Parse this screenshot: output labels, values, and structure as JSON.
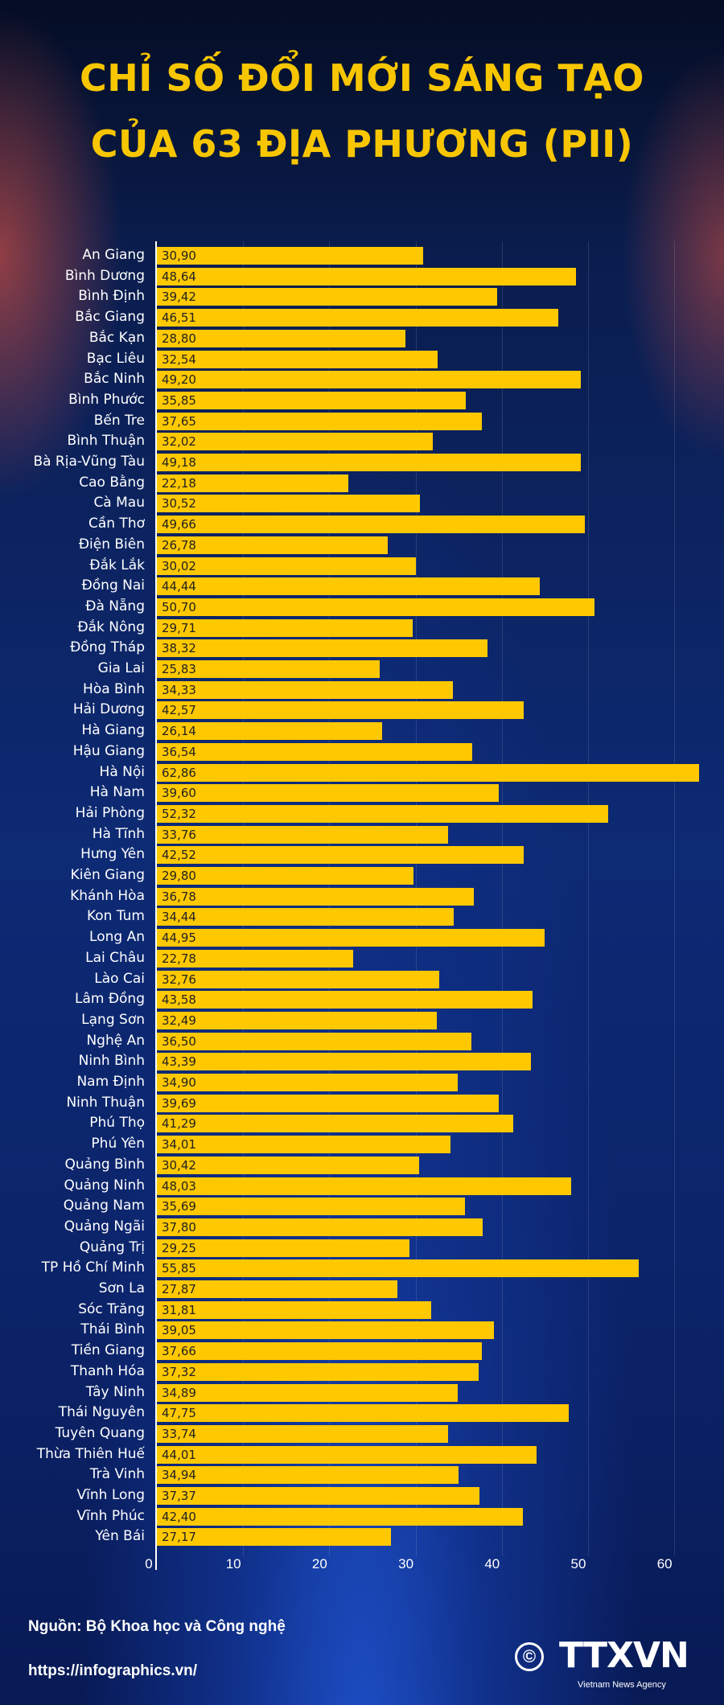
{
  "chart_data": {
    "type": "bar",
    "orientation": "horizontal",
    "title": "CHỈ SỐ ĐỔI MỚI SÁNG TẠO",
    "subtitle": "CỦA 63 ĐỊA PHƯƠNG (PII)",
    "xlabel": "",
    "ylabel": "",
    "xlim": [
      0,
      65
    ],
    "xticks": [
      0,
      10,
      20,
      30,
      40,
      50,
      60
    ],
    "grid": true,
    "bar_color": "#ffc800",
    "categories": [
      "An Giang",
      "Bình Dương",
      "Bình Định",
      "Bắc Giang",
      "Bắc Kạn",
      "Bạc Liêu",
      "Bắc Ninh",
      "Bình Phước",
      "Bến Tre",
      "Bình Thuận",
      "Bà Rịa-Vũng Tàu",
      "Cao Bằng",
      "Cà Mau",
      "Cần Thơ",
      "Điện Biên",
      "Đắk Lắk",
      "Đồng Nai",
      "Đà Nẵng",
      "Đắk Nông",
      "Đồng Tháp",
      "Gia Lai",
      "Hòa Bình",
      "Hải Dương",
      "Hà Giang",
      "Hậu Giang",
      "Hà Nội",
      "Hà Nam",
      "Hải Phòng",
      "Hà Tĩnh",
      "Hưng Yên",
      "Kiên Giang",
      "Khánh Hòa",
      "Kon Tum",
      "Long An",
      "Lai Châu",
      "Lào Cai",
      "Lâm Đồng",
      "Lạng Sơn",
      "Nghệ An",
      "Ninh Bình",
      "Nam Định",
      "Ninh Thuận",
      "Phú Thọ",
      "Phú Yên",
      "Quảng Bình",
      "Quảng Ninh",
      "Quảng Nam",
      "Quảng Ngãi",
      "Quảng Trị",
      "TP Hồ Chí Minh",
      "Sơn La",
      "Sóc Trăng",
      "Thái Bình",
      "Tiền Giang",
      "Thanh Hóa",
      "Tây Ninh",
      "Thái Nguyên",
      "Tuyên Quang",
      "Thừa Thiên Huế",
      "Trà Vinh",
      "Vĩnh Long",
      "Vĩnh Phúc",
      "Yên Bái"
    ],
    "values": [
      30.9,
      48.64,
      39.42,
      46.51,
      28.8,
      32.54,
      49.2,
      35.85,
      37.65,
      32.02,
      49.18,
      22.18,
      30.52,
      49.66,
      26.78,
      30.02,
      44.44,
      50.7,
      29.71,
      38.32,
      25.83,
      34.33,
      42.57,
      26.14,
      36.54,
      62.86,
      39.6,
      52.32,
      33.76,
      42.52,
      29.8,
      36.78,
      34.44,
      44.95,
      22.78,
      32.76,
      43.58,
      32.49,
      36.5,
      43.39,
      34.9,
      39.69,
      41.29,
      34.01,
      30.42,
      48.03,
      35.69,
      37.8,
      29.25,
      55.85,
      27.87,
      31.81,
      39.05,
      37.66,
      37.32,
      34.89,
      47.75,
      33.74,
      44.01,
      34.94,
      37.37,
      42.4,
      27.17
    ],
    "value_labels": [
      "30,90",
      "48,64",
      "39,42",
      "46,51",
      "28,80",
      "32,54",
      "49,20",
      "35,85",
      "37,65",
      "32,02",
      "49,18",
      "22,18",
      "30,52",
      "49,66",
      "26,78",
      "30,02",
      "44,44",
      "50,70",
      "29,71",
      "38,32",
      "25,83",
      "34,33",
      "42,57",
      "26,14",
      "36,54",
      "62,86",
      "39,60",
      "52,32",
      "33,76",
      "42,52",
      "29,80",
      "36,78",
      "34,44",
      "44,95",
      "22,78",
      "32,76",
      "43,58",
      "32,49",
      "36,50",
      "43,39",
      "34,90",
      "39,69",
      "41,29",
      "34,01",
      "30,42",
      "48,03",
      "35,69",
      "37,80",
      "29,25",
      "55,85",
      "27,87",
      "31,81",
      "39,05",
      "37,66",
      "37,32",
      "34,89",
      "47,75",
      "33,74",
      "44,01",
      "34,94",
      "37,37",
      "42,40",
      "27,17"
    ]
  },
  "footer": {
    "source": "Nguồn: Bộ Khoa học và Công nghệ",
    "url": "https://infographics.vn/",
    "copyright_symbol": "©",
    "logo_name": "TTXVN",
    "logo_sub": "Vietnam News Agency"
  }
}
